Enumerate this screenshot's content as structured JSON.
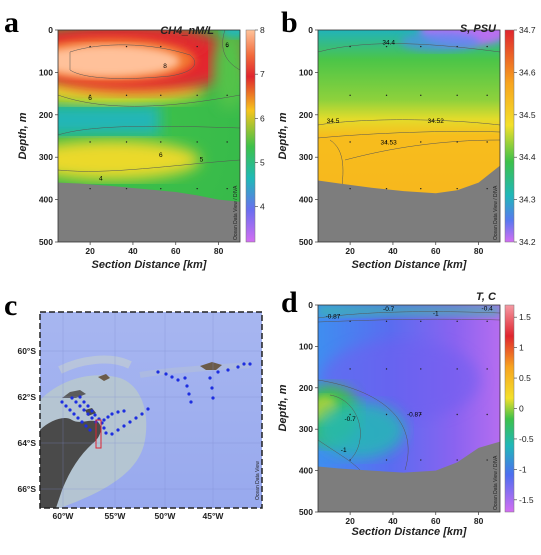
{
  "chart_data": [
    {
      "panel": "a",
      "type": "heatmap",
      "title": "CH4_nM/L",
      "xlabel": "Section Distance [km]",
      "ylabel": "Depth, m",
      "xlim": [
        5,
        90
      ],
      "ylim": [
        500,
        0
      ],
      "xticks": [
        "20",
        "40",
        "60",
        "80"
      ],
      "yticks": [
        "0",
        "100",
        "200",
        "300",
        "400",
        "500"
      ],
      "colorbar": {
        "range": [
          3.2,
          8
        ],
        "ticks": [
          "8",
          "7",
          "6",
          "5",
          "4"
        ]
      },
      "bottom_profile_depth": [
        360,
        362,
        368,
        375,
        382,
        390,
        400,
        405
      ],
      "bottom_profile_x": [
        5,
        15,
        30,
        45,
        60,
        70,
        80,
        90
      ],
      "contour_labels": [
        {
          "text": "8",
          "x": 55,
          "depth": 85
        },
        {
          "text": "6",
          "x": 20,
          "depth": 160
        },
        {
          "text": "6",
          "x": 53,
          "depth": 295
        },
        {
          "text": "5",
          "x": 72,
          "depth": 305
        },
        {
          "text": "4",
          "x": 25,
          "depth": 350
        },
        {
          "text": "6",
          "x": 84,
          "depth": 35
        }
      ],
      "watermark": "Ocean Data View / DIVA"
    },
    {
      "panel": "b",
      "type": "heatmap",
      "title": "S, PSU",
      "xlabel": "Section Distance [km]",
      "ylabel": "Depth, m",
      "xlim": [
        5,
        90
      ],
      "ylim": [
        500,
        0
      ],
      "xticks": [
        "20",
        "40",
        "60",
        "80"
      ],
      "yticks": [
        "0",
        "100",
        "200",
        "300",
        "400",
        "500"
      ],
      "colorbar": {
        "range": [
          34.2,
          34.7
        ],
        "ticks": [
          "34.7",
          "34.6",
          "34.5",
          "34.4",
          "34.3",
          "34.2"
        ]
      },
      "bottom_profile_depth": [
        355,
        362,
        372,
        380,
        385,
        378,
        360,
        320
      ],
      "bottom_profile_x": [
        5,
        15,
        30,
        45,
        60,
        70,
        80,
        90
      ],
      "contour_labels": [
        {
          "text": "34.4",
          "x": 38,
          "depth": 30
        },
        {
          "text": "34.5",
          "x": 12,
          "depth": 215
        },
        {
          "text": "34.52",
          "x": 60,
          "depth": 215
        },
        {
          "text": "34.53",
          "x": 38,
          "depth": 265
        }
      ],
      "watermark": "Ocean Data View / DIVA"
    },
    {
      "panel": "c",
      "type": "map",
      "lat_ticks": [
        "60°S",
        "62°S",
        "64°S",
        "66°S"
      ],
      "lon_ticks": [
        "60°W",
        "55°W",
        "50°W",
        "45°W"
      ],
      "watermark": "Ocean Data View"
    },
    {
      "panel": "d",
      "type": "heatmap",
      "title": "T, C",
      "xlabel": "Section Distance [km]",
      "ylabel": "Depth, m",
      "xlim": [
        5,
        90
      ],
      "ylim": [
        500,
        0
      ],
      "xticks": [
        "20",
        "40",
        "60",
        "80"
      ],
      "yticks": [
        "0",
        "100",
        "200",
        "300",
        "400",
        "500"
      ],
      "colorbar": {
        "range": [
          -1.7,
          1.7
        ],
        "ticks": [
          "1.5",
          "1",
          "0.5",
          "0",
          "-0.5",
          "-1",
          "-1.5"
        ]
      },
      "bottom_profile_depth": [
        390,
        395,
        400,
        405,
        400,
        380,
        345,
        330
      ],
      "bottom_profile_x": [
        5,
        15,
        30,
        45,
        60,
        70,
        80,
        90
      ],
      "contour_labels": [
        {
          "text": "-0.87",
          "x": 12,
          "depth": 28
        },
        {
          "text": "-0.7",
          "x": 38,
          "depth": 10
        },
        {
          "text": "-1",
          "x": 60,
          "depth": 20
        },
        {
          "text": "-0.4",
          "x": 84,
          "depth": 8
        },
        {
          "text": "-0.7",
          "x": 20,
          "depth": 275
        },
        {
          "text": "-0.87",
          "x": 50,
          "depth": 265
        },
        {
          "text": "-1",
          "x": 17,
          "depth": 350
        }
      ],
      "watermark": "Ocean Data View / DIVA"
    }
  ]
}
